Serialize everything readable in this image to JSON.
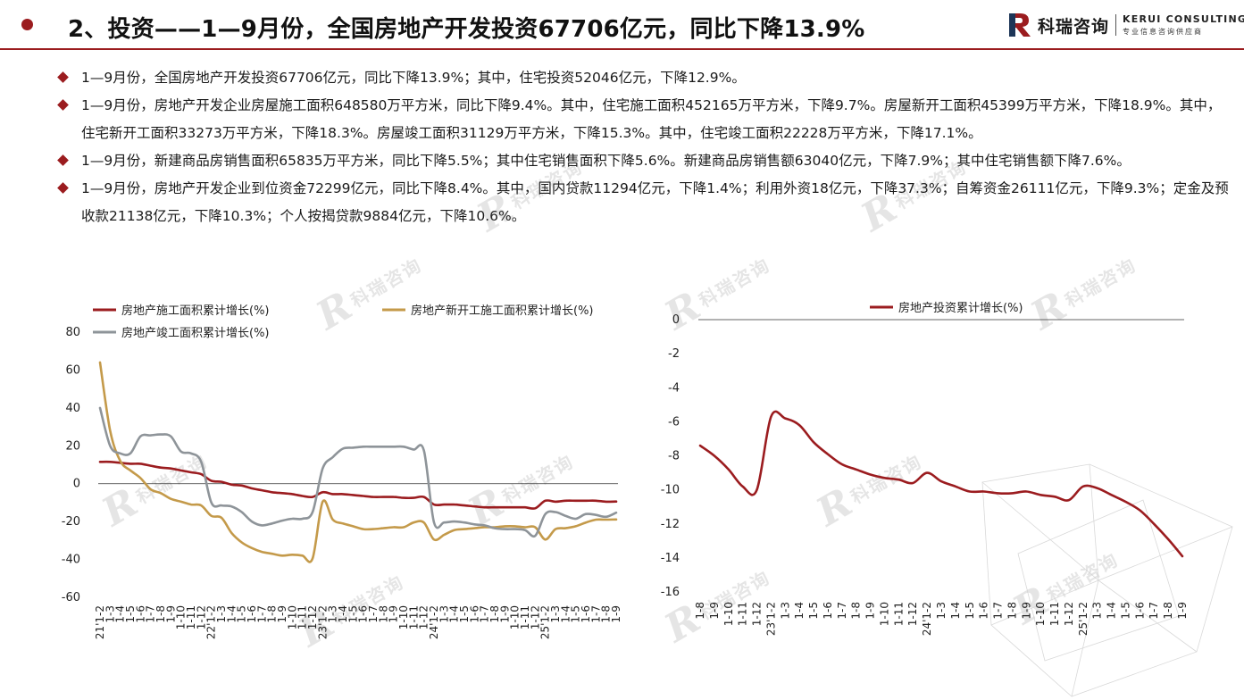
{
  "header": {
    "title": "2、投资——1—9月份，全国房地产开发投资67706亿元，同比下降13.9%",
    "logo_cn": "科瑞咨询",
    "logo_en": "KERUI CONSULTING",
    "logo_tagline": "专业信息咨询供应商",
    "accent": "#9b1c1f"
  },
  "bullets": [
    "1—9月份，全国房地产开发投资67706亿元，同比下降13.9%；其中，住宅投资52046亿元，下降12.9%。",
    "1—9月份，房地产开发企业房屋施工面积648580万平方米，同比下降9.4%。其中，住宅施工面积452165万平方米，下降9.7%。房屋新开工面积45399万平方米，下降18.9%。其中，住宅新开工面积33273万平方米，下降18.3%。房屋竣工面积31129万平方米，下降15.3%。其中，住宅竣工面积22228万平方米，下降17.1%。",
    "1—9月份，新建商品房销售面积65835万平方米，同比下降5.5%；其中住宅销售面积下降5.6%。新建商品房销售额63040亿元，下降7.9%；其中住宅销售额下降7.6%。",
    "1—9月份，房地产开发企业到位资金72299亿元，同比下降8.4%。其中，国内贷款11294亿元，下降1.4%；利用外资18亿元，下降37.3%；自筹资金26111亿元，下降9.3%；定金及预收款21138亿元，下降10.3%；个人按揭贷款9884亿元，下降10.6%。"
  ],
  "watermark": "科瑞咨询",
  "chart_data": [
    {
      "type": "line",
      "x_labels": [
        "21'1-2",
        "1-3",
        "1-4",
        "1-5",
        "1-6",
        "1-7",
        "1-8",
        "1-9",
        "1-10",
        "1-11",
        "1-12",
        "22'1-2",
        "1-3",
        "1-4",
        "1-5",
        "1-6",
        "1-7",
        "1-8",
        "1-9",
        "1-10",
        "1-11",
        "1-12",
        "23'1-2",
        "1-3",
        "1-4",
        "1-5",
        "1-6",
        "1-7",
        "1-8",
        "1-9",
        "1-10",
        "1-11",
        "1-12",
        "24'1-2",
        "1-3",
        "1-4",
        "1-5",
        "1-6",
        "1-7",
        "1-8",
        "1-9",
        "1-10",
        "1-11",
        "1-12",
        "25'1-2",
        "1-3",
        "1-4",
        "1-5",
        "1-6",
        "1-7",
        "1-8",
        "1-9"
      ],
      "yticks": [
        80,
        60,
        40,
        20,
        0,
        -20,
        -40,
        -60
      ],
      "ylim": [
        -60,
        80
      ],
      "series": [
        {
          "name": "房地产施工面积累计增长(%)",
          "color": "#9b1c1f",
          "values": [
            11.5,
            11.5,
            11.0,
            10.5,
            10.5,
            9.5,
            8.5,
            8.0,
            7.0,
            6.0,
            5.0,
            1.5,
            1.0,
            -0.5,
            -1.0,
            -2.5,
            -3.5,
            -4.5,
            -5.0,
            -5.5,
            -6.5,
            -7.0,
            -4.5,
            -5.5,
            -5.5,
            -6.0,
            -6.5,
            -7.0,
            -7.0,
            -7.0,
            -7.5,
            -7.5,
            -7.0,
            -11.0,
            -11.0,
            -11.0,
            -11.5,
            -12.0,
            -12.5,
            -12.5,
            -12.5,
            -12.5,
            -12.5,
            -13.0,
            -9.0,
            -9.5,
            -9.0,
            -9.0,
            -9.0,
            -9.0,
            -9.5,
            -9.4
          ]
        },
        {
          "name": "房地产新开工施工面积累计增长(%)",
          "color": "#c49a4a",
          "values": [
            64.0,
            28.0,
            12.0,
            7.0,
            3.0,
            -3.0,
            -5.0,
            -8.0,
            -9.5,
            -11.0,
            -11.5,
            -17.0,
            -18.0,
            -26.0,
            -31.0,
            -34.0,
            -36.0,
            -37.0,
            -38.0,
            -37.5,
            -38.0,
            -39.5,
            -9.5,
            -19.0,
            -21.0,
            -22.5,
            -24.0,
            -24.0,
            -23.5,
            -23.0,
            -23.0,
            -20.5,
            -20.5,
            -29.5,
            -27.0,
            -24.5,
            -24.0,
            -23.5,
            -23.0,
            -23.0,
            -22.5,
            -22.5,
            -23.0,
            -23.0,
            -29.5,
            -24.0,
            -23.5,
            -22.5,
            -20.5,
            -19.0,
            -19.0,
            -18.9
          ]
        },
        {
          "name": "房地产竣工面积累计增长(%)",
          "color": "#8e9499",
          "values": [
            40.0,
            20.0,
            16.0,
            16.0,
            25.0,
            25.5,
            26.0,
            25.0,
            17.0,
            16.0,
            11.5,
            -10.0,
            -11.5,
            -12.0,
            -15.0,
            -20.0,
            -22.0,
            -21.0,
            -19.5,
            -18.5,
            -18.5,
            -15.0,
            8.0,
            14.0,
            18.5,
            19.0,
            19.5,
            19.5,
            19.5,
            19.5,
            19.5,
            18.0,
            17.5,
            -20.5,
            -20.5,
            -20.0,
            -20.5,
            -21.5,
            -22.0,
            -23.5,
            -24.0,
            -24.0,
            -24.5,
            -27.5,
            -16.0,
            -15.0,
            -17.0,
            -18.5,
            -16.0,
            -16.5,
            -17.5,
            -15.3
          ]
        }
      ]
    },
    {
      "type": "line",
      "x_labels": [
        "1-8",
        "1-9",
        "1-10",
        "1-11",
        "1-12",
        "23'1-2",
        "1-3",
        "1-4",
        "1-5",
        "1-6",
        "1-7",
        "1-8",
        "1-9",
        "1-10",
        "1-11",
        "1-12",
        "24'1-2",
        "1-3",
        "1-4",
        "1-5",
        "1-6",
        "1-7",
        "1-8",
        "1-9",
        "1-10",
        "1-11",
        "1-12",
        "25'1-2",
        "1-3",
        "1-4",
        "1-5",
        "1-6",
        "1-7",
        "1-8",
        "1-9"
      ],
      "yticks": [
        0,
        -2,
        -4,
        -6,
        -8,
        -10,
        -12,
        -14,
        -16
      ],
      "ylim": [
        -16,
        0
      ],
      "series": [
        {
          "name": "房地产投资累计增长(%)",
          "color": "#9b1c1f",
          "values": [
            -7.4,
            -8.0,
            -8.8,
            -9.8,
            -10.0,
            -5.7,
            -5.8,
            -6.2,
            -7.2,
            -7.9,
            -8.5,
            -8.8,
            -9.1,
            -9.3,
            -9.4,
            -9.6,
            -9.0,
            -9.5,
            -9.8,
            -10.1,
            -10.1,
            -10.2,
            -10.2,
            -10.1,
            -10.3,
            -10.4,
            -10.6,
            -9.8,
            -9.9,
            -10.3,
            -10.7,
            -11.2,
            -12.0,
            -12.9,
            -13.9
          ]
        }
      ]
    }
  ]
}
